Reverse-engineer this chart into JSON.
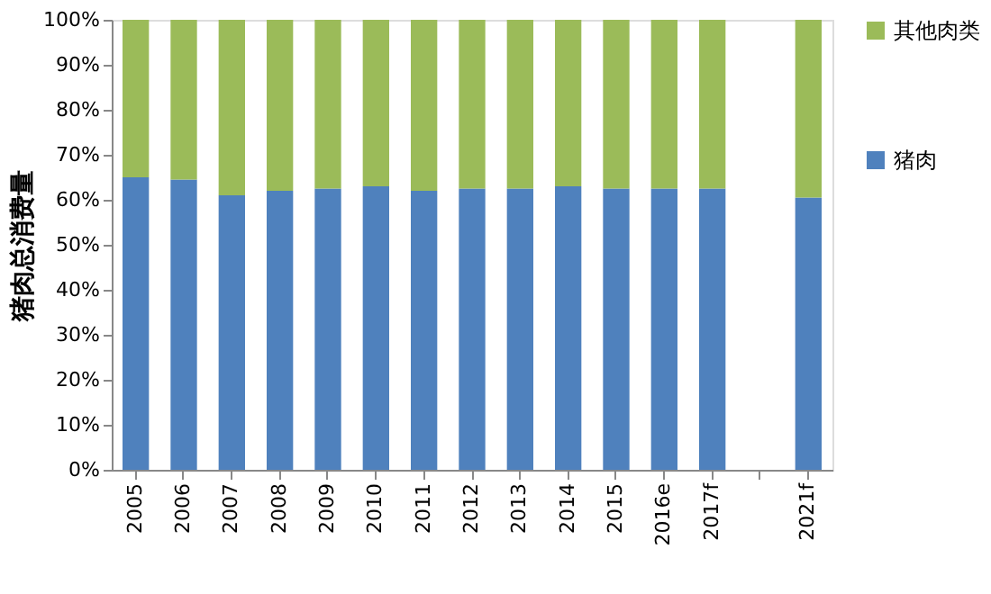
{
  "chart_data": {
    "type": "bar",
    "stacked": true,
    "ylabel": "猪肉总消费量",
    "categories": [
      "2005",
      "2006",
      "2007",
      "2008",
      "2009",
      "2010",
      "2011",
      "2012",
      "2013",
      "2014",
      "2015",
      "2016e",
      "2017f",
      null,
      "2021f"
    ],
    "series": [
      {
        "name": "猪肉",
        "color": "#4f81bd",
        "values": [
          65,
          64.5,
          61,
          62,
          62.5,
          63,
          62,
          62.5,
          62.5,
          63,
          62.5,
          62.5,
          62.5,
          null,
          60.5
        ]
      },
      {
        "name": "其他肉类",
        "color": "#9bbb59",
        "values": [
          35,
          35.5,
          39,
          38,
          37.5,
          37,
          38,
          37.5,
          37.5,
          37,
          37.5,
          37.5,
          37.5,
          null,
          39.5
        ]
      }
    ],
    "ylim": [
      0,
      100
    ],
    "yticks": [
      {
        "value": 0,
        "label": "0%"
      },
      {
        "value": 10,
        "label": "10%"
      },
      {
        "value": 20,
        "label": "20%"
      },
      {
        "value": 30,
        "label": "30%"
      },
      {
        "value": 40,
        "label": "40%"
      },
      {
        "value": 50,
        "label": "50%"
      },
      {
        "value": 60,
        "label": "60%"
      },
      {
        "value": 70,
        "label": "70%"
      },
      {
        "value": 80,
        "label": "80%"
      },
      {
        "value": 90,
        "label": "90%"
      },
      {
        "value": 100,
        "label": "100%"
      }
    ],
    "grid": false,
    "legend": "right"
  }
}
